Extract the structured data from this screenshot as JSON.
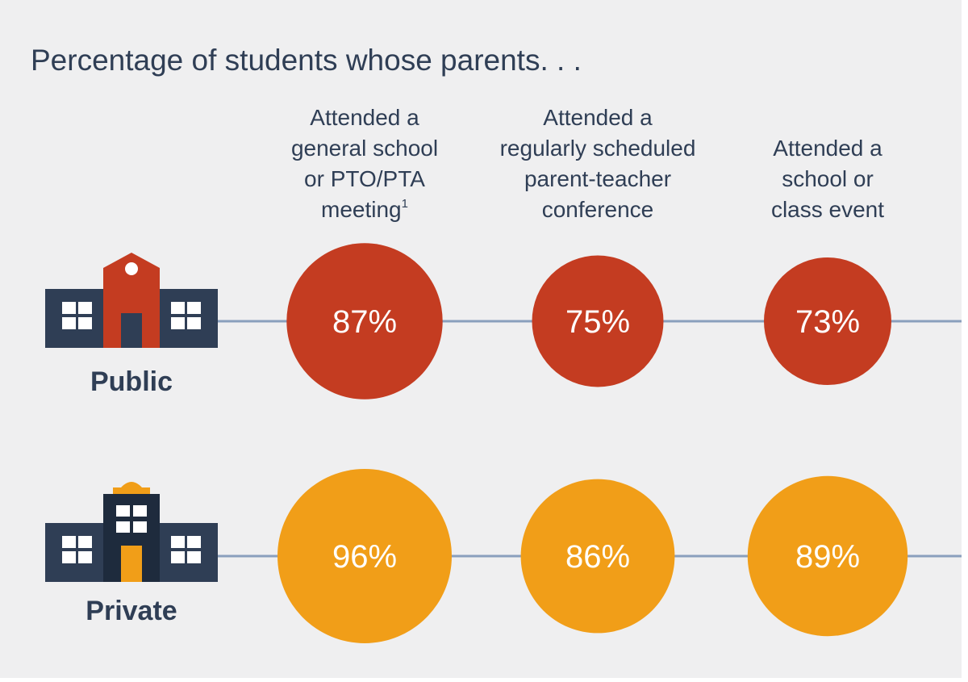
{
  "chart_data": {
    "type": "bubble",
    "title": "Percentage of students whose parents. . .",
    "categories": [
      "Attended a general school or PTO/PTA meeting1",
      "Attended a regularly scheduled parent-teacher conference",
      "Attended a school or class event"
    ],
    "category_lines": [
      [
        "Attended a",
        "general school",
        "or PTO/PTA",
        "meeting"
      ],
      [
        "Attended a",
        "regularly scheduled",
        "parent-teacher",
        "conference"
      ],
      [
        "Attended a",
        "school or",
        "class event"
      ]
    ],
    "footnote_marker": "1",
    "series": [
      {
        "name": "Public",
        "values": [
          87,
          75,
          73
        ],
        "labels": [
          "87%",
          "75%",
          "73%"
        ],
        "color": "#c43c21"
      },
      {
        "name": "Private",
        "values": [
          96,
          86,
          89
        ],
        "labels": [
          "96%",
          "86%",
          "89%"
        ],
        "color": "#f19e18"
      }
    ],
    "unit": "%",
    "colors": {
      "background": "#efeff0",
      "connector": "#8a9fbd",
      "text": "#2f3e55",
      "building_dark": "#2f3e55",
      "window": "#ffffff"
    },
    "icons": [
      "public-school-building-icon",
      "private-school-building-icon"
    ]
  }
}
